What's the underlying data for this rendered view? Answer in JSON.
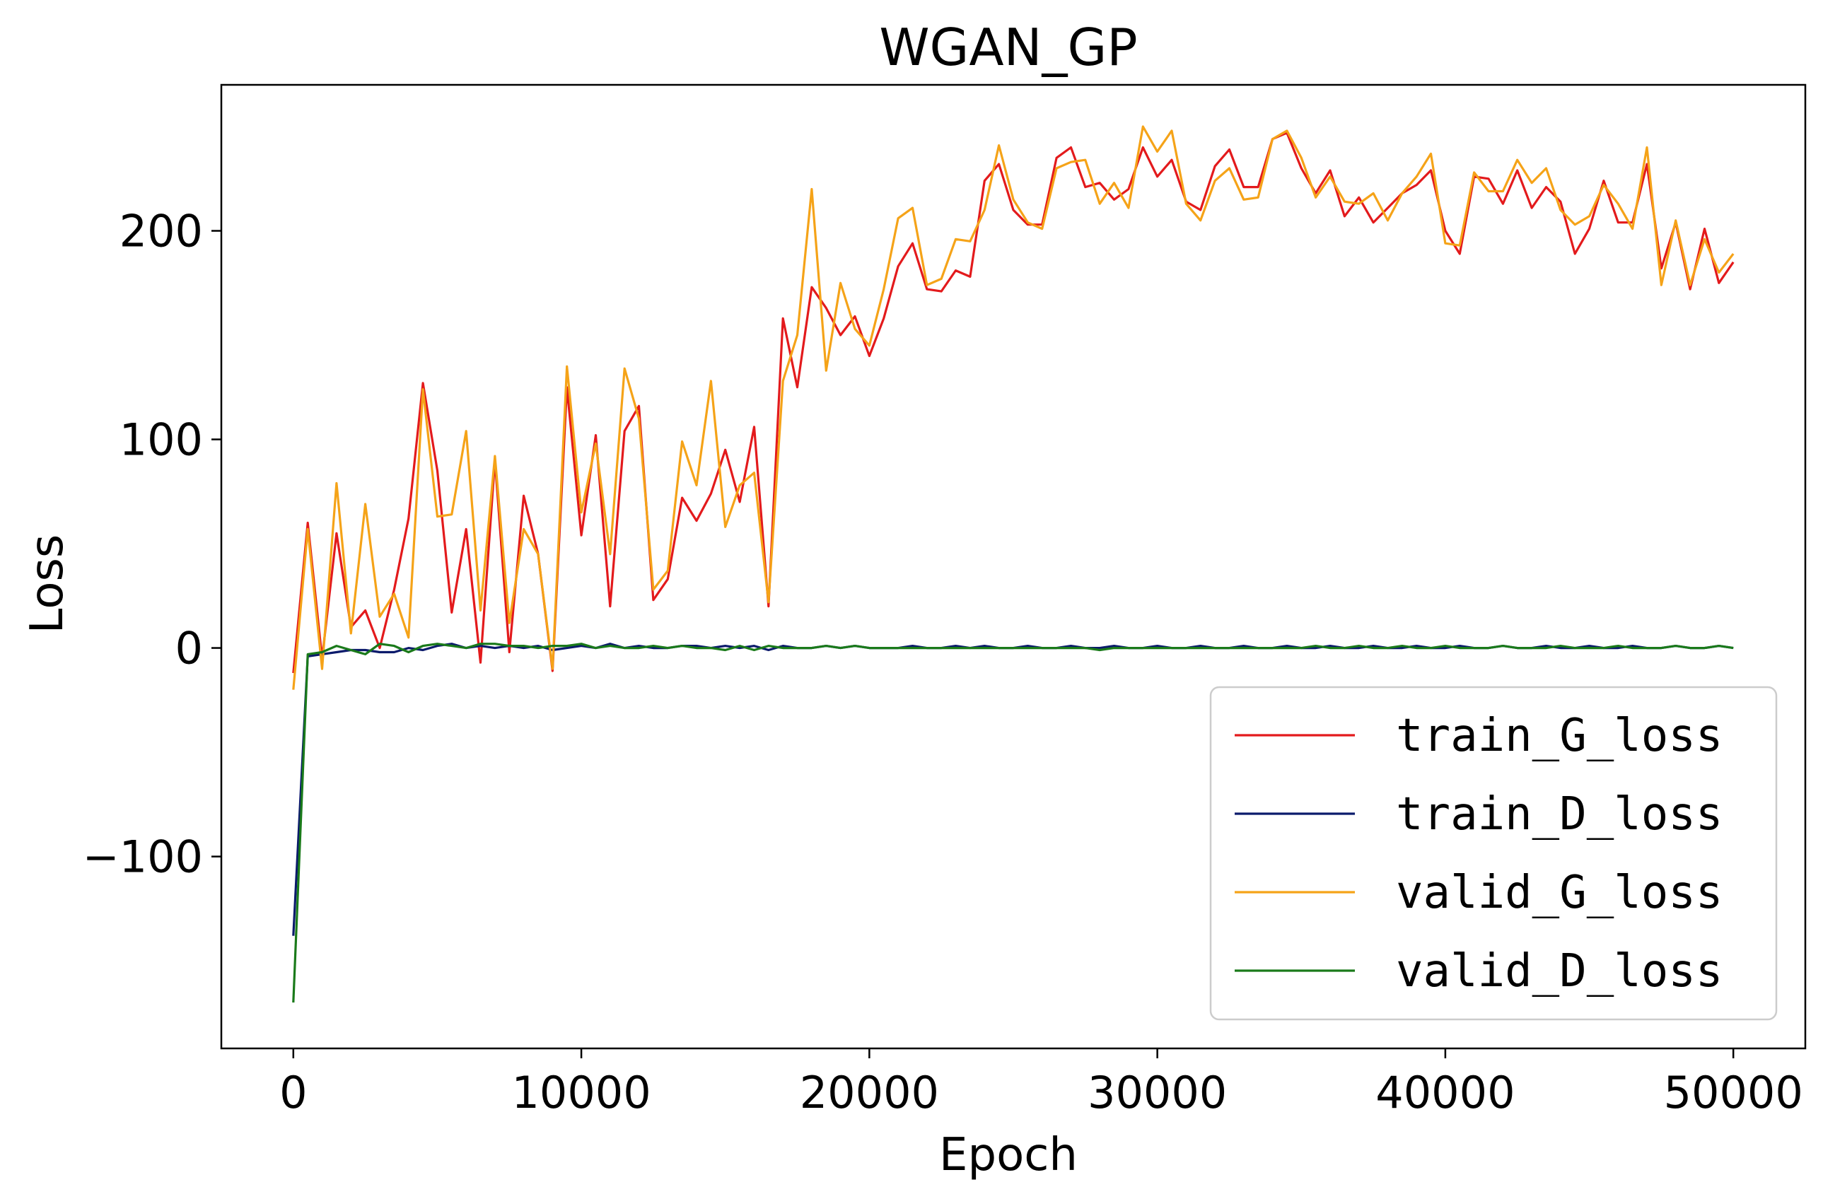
{
  "chart_data": {
    "type": "line",
    "title": "WGAN_GP",
    "xlabel": "Epoch",
    "ylabel": "Loss",
    "xlim": [
      -2500,
      52500
    ],
    "ylim": [
      -192,
      270
    ],
    "xticks": [
      0,
      10000,
      20000,
      30000,
      40000,
      50000
    ],
    "xtick_labels": [
      "0",
      "10000",
      "20000",
      "30000",
      "40000",
      "50000"
    ],
    "yticks": [
      -100,
      0,
      100,
      200
    ],
    "ytick_labels": [
      "−100",
      "0",
      "100",
      "200"
    ],
    "grid": false,
    "legend_position": "lower-right",
    "x": [
      0,
      500,
      1000,
      1500,
      2000,
      2500,
      3000,
      3500,
      4000,
      4500,
      5000,
      5500,
      6000,
      6500,
      7000,
      7500,
      8000,
      8500,
      9000,
      9500,
      10000,
      10500,
      11000,
      11500,
      12000,
      12500,
      13000,
      13500,
      14000,
      14500,
      15000,
      15500,
      16000,
      16500,
      17000,
      17500,
      18000,
      18500,
      19000,
      19500,
      20000,
      20500,
      21000,
      21500,
      22000,
      22500,
      23000,
      23500,
      24000,
      24500,
      25000,
      25500,
      26000,
      26500,
      27000,
      27500,
      28000,
      28500,
      29000,
      29500,
      30000,
      30500,
      31000,
      31500,
      32000,
      32500,
      33000,
      33500,
      34000,
      34500,
      35000,
      35500,
      36000,
      36500,
      37000,
      37500,
      38000,
      38500,
      39000,
      39500,
      40000,
      40500,
      41000,
      41500,
      42000,
      42500,
      43000,
      43500,
      44000,
      44500,
      45000,
      45500,
      46000,
      46500,
      47000,
      47500,
      48000,
      48500,
      49000,
      49500,
      50000
    ],
    "series": [
      {
        "name": "train_G_loss",
        "color": "#e31a1c",
        "values": [
          -12,
          60,
          -5,
          55,
          10,
          18,
          0,
          28,
          62,
          127,
          85,
          17,
          57,
          -7,
          90,
          -2,
          73,
          45,
          -11,
          125,
          54,
          102,
          20,
          104,
          116,
          23,
          33,
          72,
          61,
          74,
          95,
          70,
          106,
          20,
          158,
          125,
          173,
          163,
          150,
          159,
          140,
          158,
          183,
          194,
          172,
          171,
          181,
          178,
          224,
          232,
          210,
          203,
          203,
          235,
          240,
          221,
          223,
          215,
          220,
          240,
          226,
          234,
          214,
          210,
          231,
          239,
          221,
          221,
          244,
          247,
          230,
          218,
          229,
          207,
          216,
          204,
          211,
          218,
          222,
          229,
          200,
          189,
          226,
          225,
          213,
          229,
          211,
          221,
          214,
          189,
          201,
          224,
          204,
          204,
          232,
          182,
          204,
          172,
          201,
          175,
          185
        ]
      },
      {
        "name": "train_D_loss",
        "color": "#0b1a6b",
        "values": [
          -138,
          -4,
          -3,
          -2,
          -1,
          -1,
          -2,
          -2,
          0,
          -1,
          1,
          2,
          0,
          1,
          0,
          1,
          0,
          1,
          -1,
          0,
          1,
          0,
          2,
          0,
          1,
          0,
          0,
          1,
          1,
          0,
          1,
          0,
          1,
          -1,
          1,
          0,
          0,
          1,
          0,
          1,
          0,
          0,
          0,
          1,
          0,
          0,
          1,
          0,
          1,
          0,
          0,
          1,
          0,
          0,
          1,
          0,
          0,
          1,
          0,
          0,
          1,
          0,
          0,
          1,
          0,
          0,
          1,
          0,
          0,
          1,
          0,
          0,
          1,
          0,
          0,
          1,
          0,
          0,
          1,
          0,
          0,
          1,
          0,
          0,
          1,
          0,
          0,
          1,
          0,
          0,
          1,
          0,
          0,
          1,
          0,
          0,
          1,
          0,
          0,
          1,
          0
        ]
      },
      {
        "name": "valid_G_loss",
        "color": "#f5a318",
        "values": [
          -20,
          57,
          -10,
          79,
          7,
          69,
          15,
          26,
          5,
          124,
          63,
          64,
          104,
          18,
          92,
          12,
          57,
          45,
          -10,
          135,
          65,
          98,
          45,
          134,
          110,
          28,
          37,
          99,
          78,
          128,
          58,
          78,
          84,
          22,
          128,
          150,
          220,
          133,
          175,
          153,
          145,
          172,
          206,
          211,
          174,
          177,
          196,
          195,
          210,
          241,
          215,
          204,
          201,
          230,
          233,
          234,
          213,
          223,
          211,
          250,
          238,
          248,
          213,
          205,
          224,
          230,
          215,
          216,
          244,
          248,
          235,
          216,
          226,
          214,
          213,
          218,
          205,
          218,
          226,
          237,
          194,
          193,
          228,
          219,
          219,
          234,
          223,
          230,
          210,
          203,
          207,
          222,
          213,
          201,
          240,
          174,
          205,
          174,
          196,
          180,
          189
        ]
      },
      {
        "name": "valid_D_loss",
        "color": "#1a7a1a",
        "values": [
          -170,
          -3,
          -2,
          1,
          -1,
          -3,
          2,
          1,
          -2,
          1,
          2,
          1,
          0,
          2,
          2,
          1,
          1,
          0,
          1,
          1,
          2,
          0,
          1,
          0,
          0,
          1,
          0,
          1,
          0,
          0,
          -1,
          1,
          -1,
          1,
          0,
          0,
          0,
          1,
          0,
          1,
          0,
          0,
          0,
          0,
          0,
          0,
          0,
          0,
          0,
          0,
          0,
          0,
          0,
          0,
          0,
          0,
          -1,
          0,
          0,
          0,
          0,
          0,
          0,
          0,
          0,
          0,
          0,
          0,
          0,
          0,
          0,
          1,
          0,
          0,
          1,
          0,
          0,
          1,
          0,
          0,
          1,
          0,
          0,
          0,
          1,
          0,
          0,
          0,
          1,
          0,
          0,
          0,
          1,
          0,
          0,
          0,
          1,
          0,
          0,
          1,
          0
        ]
      }
    ]
  }
}
